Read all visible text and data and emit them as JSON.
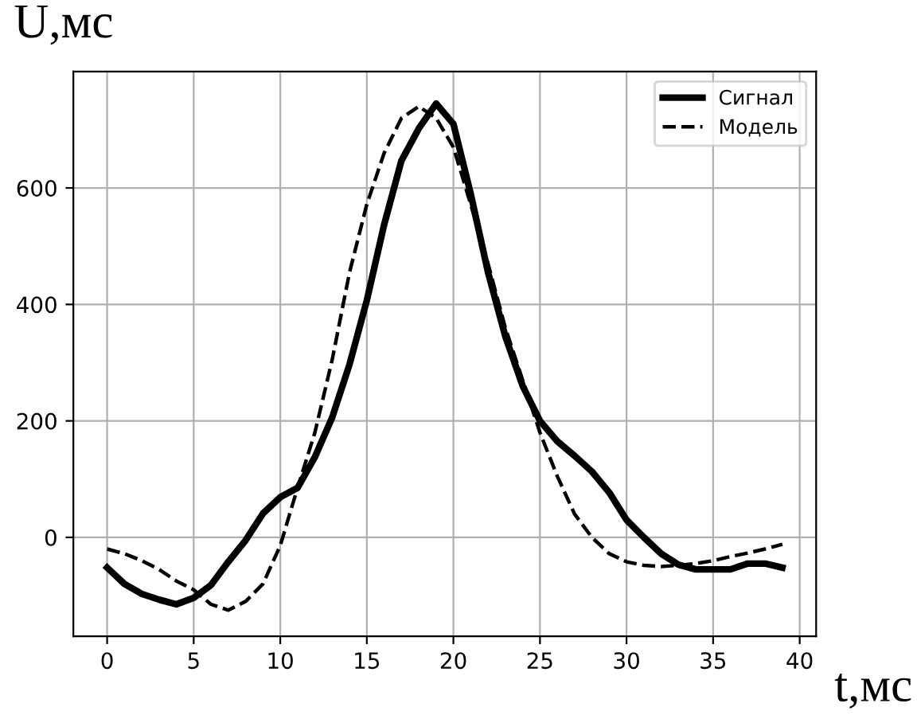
{
  "chart_data": {
    "type": "line",
    "xlabel": "t,мс",
    "ylabel": "U,мс",
    "x": [
      0,
      1,
      2,
      3,
      4,
      5,
      6,
      7,
      8,
      9,
      10,
      11,
      12,
      13,
      14,
      15,
      16,
      17,
      18,
      19,
      20,
      21,
      22,
      23,
      24,
      25,
      26,
      27,
      28,
      29,
      30,
      31,
      32,
      33,
      34,
      35,
      36,
      37,
      38,
      39
    ],
    "series": [
      {
        "name": "Сигнал",
        "color": "#000000",
        "line_style": "solid",
        "values": [
          -52,
          -80,
          -97,
          -107,
          -115,
          -104,
          -82,
          -42,
          -5,
          41,
          69,
          85,
          138,
          206,
          297,
          407,
          537,
          647,
          702,
          745,
          710,
          590,
          455,
          345,
          260,
          200,
          165,
          140,
          113,
          77,
          30,
          0,
          -28,
          -47,
          -55,
          -55,
          -55,
          -45,
          -45,
          -52
        ]
      },
      {
        "name": "Модель",
        "color": "#000000",
        "line_style": "dashed",
        "values": [
          -20,
          -28,
          -40,
          -55,
          -75,
          -90,
          -115,
          -125,
          -110,
          -80,
          -14,
          85,
          180,
          305,
          455,
          572,
          660,
          720,
          740,
          720,
          670,
          572,
          470,
          360,
          270,
          180,
          105,
          40,
          0,
          -28,
          -42,
          -48,
          -50,
          -48,
          -45,
          -40,
          -33,
          -27,
          -20,
          -12
        ]
      }
    ],
    "xlim": [
      -1.95,
      40.95
    ],
    "ylim": [
      -170,
      800
    ],
    "xticks": [
      0,
      5,
      10,
      15,
      20,
      25,
      30,
      35,
      40
    ],
    "yticks": [
      0,
      200,
      400,
      600
    ],
    "grid": true,
    "legend": "top right",
    "marker": "none"
  }
}
